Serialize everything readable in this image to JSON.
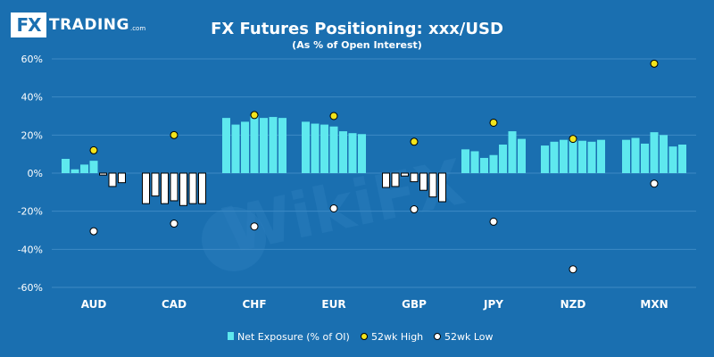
{
  "logo": {
    "box_text": "FX",
    "word": "TRADING",
    "domain": ".com"
  },
  "watermark": "WikiFX",
  "colors": {
    "background": "#1a6fb0",
    "net_exposure_positive": "#5ee8ee",
    "net_exposure_negative": "#ffffff",
    "high_marker": "#f2e41c",
    "low_marker": "#ffffff",
    "grid": "#3d8ac4",
    "text": "#ffffff"
  },
  "chart_data": {
    "type": "bar",
    "title": "FX Futures Positioning: xxx/USD",
    "subtitle": "(As % of Open Interest)",
    "xlabel": "",
    "ylabel": "",
    "ylim": [
      -60,
      60
    ],
    "yticks": [
      60,
      40,
      20,
      0,
      -20,
      -40,
      -60
    ],
    "ytick_labels": [
      "60%",
      "40%",
      "20%",
      "0%",
      "-20%",
      "-40%",
      "-60%"
    ],
    "grid": true,
    "legend_position": "bottom",
    "categories": [
      "AUD",
      "CAD",
      "CHF",
      "EUR",
      "GBP",
      "JPY",
      "NZD",
      "MXN"
    ],
    "series": [
      {
        "name": "Net Exposure (% of OI)",
        "kind": "bar",
        "values": [
          [
            7.5,
            2,
            4.5,
            6.5,
            -1,
            -7,
            -5
          ],
          [
            -16,
            -12,
            -16,
            -14.5,
            -17,
            -16,
            -16
          ],
          [
            29,
            25.5,
            27,
            30,
            29,
            29.5,
            29
          ],
          [
            27,
            26,
            25.5,
            24.5,
            22,
            21,
            20.5
          ],
          [
            -7.5,
            -7,
            -1.5,
            -4.5,
            -9,
            -12.5,
            -15
          ],
          [
            12.5,
            11.5,
            8,
            9.5,
            15,
            22,
            18
          ],
          [
            14.5,
            16.5,
            17.5,
            18,
            17,
            16.5,
            17.5
          ],
          [
            17.5,
            18.5,
            15.5,
            21.5,
            20,
            14,
            15
          ]
        ]
      },
      {
        "name": "52wk High",
        "kind": "marker",
        "values": [
          12,
          20,
          30.5,
          30,
          16.5,
          26.5,
          18,
          57.5
        ]
      },
      {
        "name": "52wk Low",
        "kind": "marker",
        "values": [
          -30.5,
          -26.5,
          -28,
          -18.5,
          -19,
          -25.5,
          -50.5,
          -5.5
        ]
      }
    ]
  }
}
